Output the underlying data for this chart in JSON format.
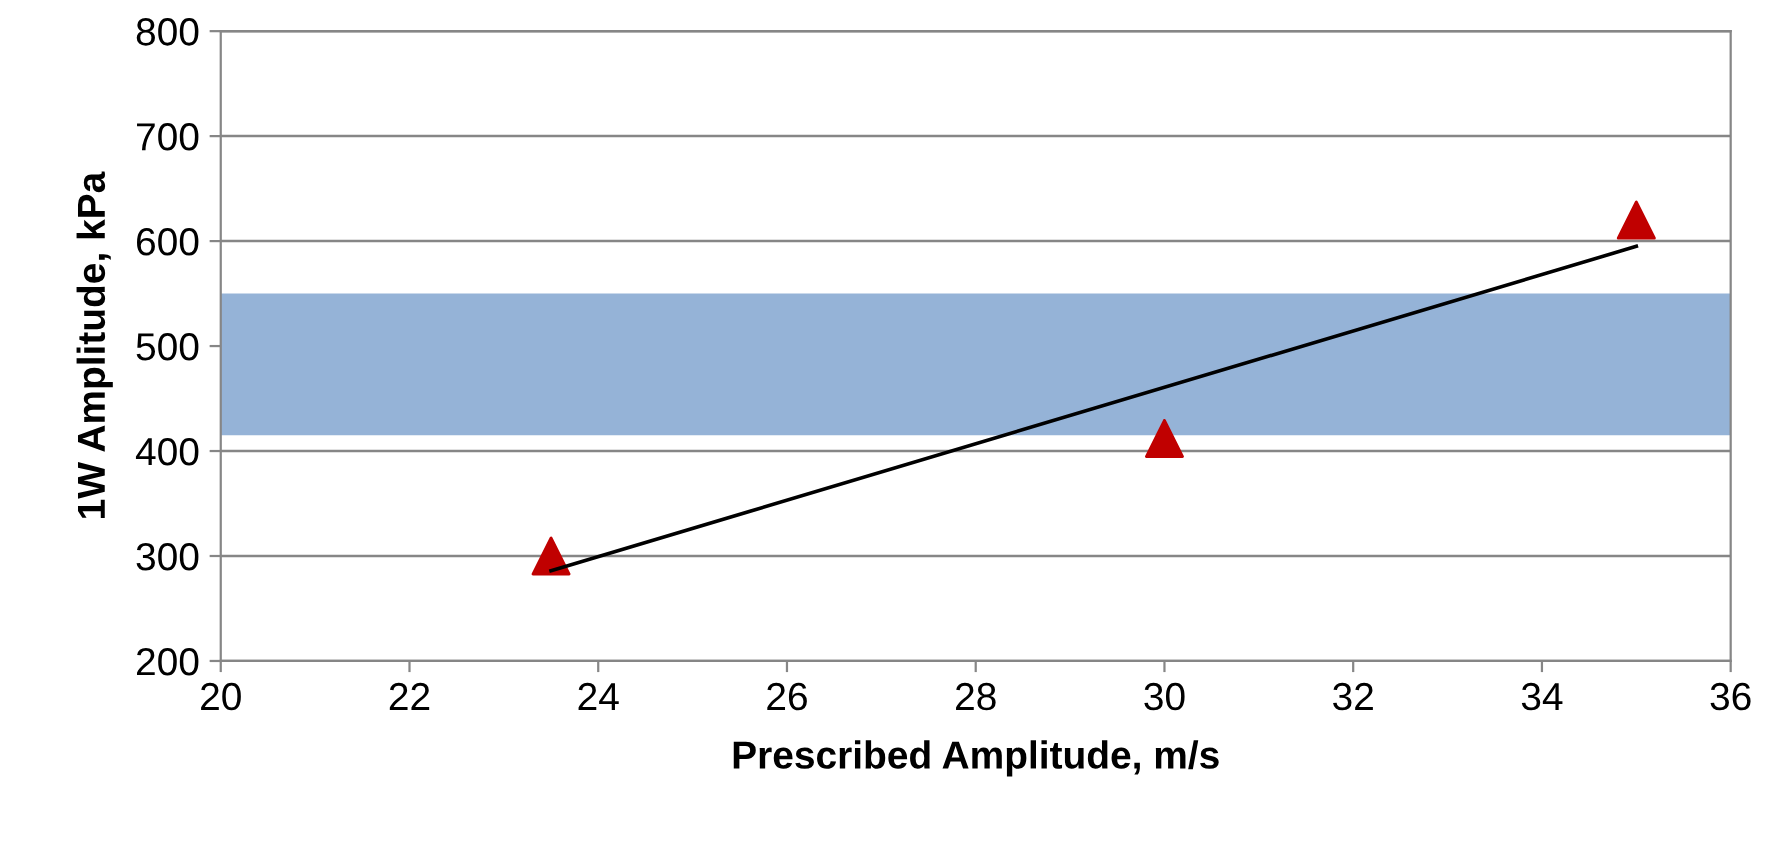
{
  "chart_data": {
    "type": "scatter",
    "xlabel": "Prescribed Amplitude, m/s",
    "ylabel": "1W Amplitude, kPa",
    "xlim": [
      20,
      36
    ],
    "xticks": [
      20,
      22,
      24,
      26,
      28,
      30,
      32,
      34,
      36
    ],
    "ylim": [
      200,
      800
    ],
    "yticks": [
      200,
      300,
      400,
      500,
      600,
      700,
      800
    ],
    "grid": "y",
    "series": [
      {
        "color": "#c00000",
        "marker": "triangle",
        "x": [
          23.5,
          30,
          35
        ],
        "values": [
          300,
          412,
          620
        ]
      },
      {
        "type": "line",
        "color": "#000000",
        "marker": "none",
        "x": [
          23.5,
          35
        ],
        "values": [
          286,
          595
        ]
      }
    ],
    "bands": [
      {
        "axis": "y",
        "from": 415,
        "to": 550,
        "color": "#95b3d7"
      }
    ]
  }
}
